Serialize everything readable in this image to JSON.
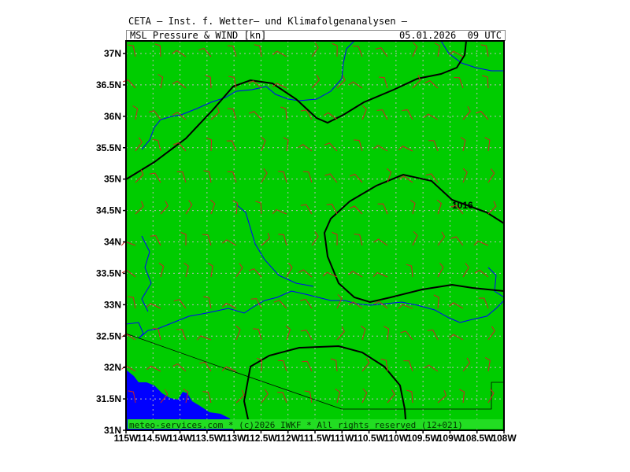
{
  "header": {
    "title": "CETA — Inst. f. Wetter— und Klimafolgenanalysen —",
    "product": "MSL_Pressure_&_WIND_[kn]",
    "datetime": "05.01.2026  09 UTC"
  },
  "map": {
    "lat_labels": [
      "37N",
      "36.5N",
      "36N",
      "35.5N",
      "35N",
      "34.5N",
      "34N",
      "33.5N",
      "33N",
      "32.5N",
      "32N",
      "31.5N",
      "31N"
    ],
    "lon_labels": [
      "115W",
      "114.5W",
      "114W",
      "113.5W",
      "113W",
      "112.5W",
      "112W",
      "111.5W",
      "111W",
      "110.5W",
      "110W",
      "109.5W",
      "109W",
      "108.5W",
      "108W"
    ],
    "isobar_label": "1016",
    "colors": {
      "land": "#00cc00",
      "water": "#0000ff",
      "isobar": "#000000",
      "rivers": "#0000ff",
      "wind_barbs": "#ff0000",
      "grid": "#cccccc"
    }
  },
  "footer": {
    "copyright": "meteo-services.com * (c)2026 IWKF * All rights reserved (12+021)"
  }
}
